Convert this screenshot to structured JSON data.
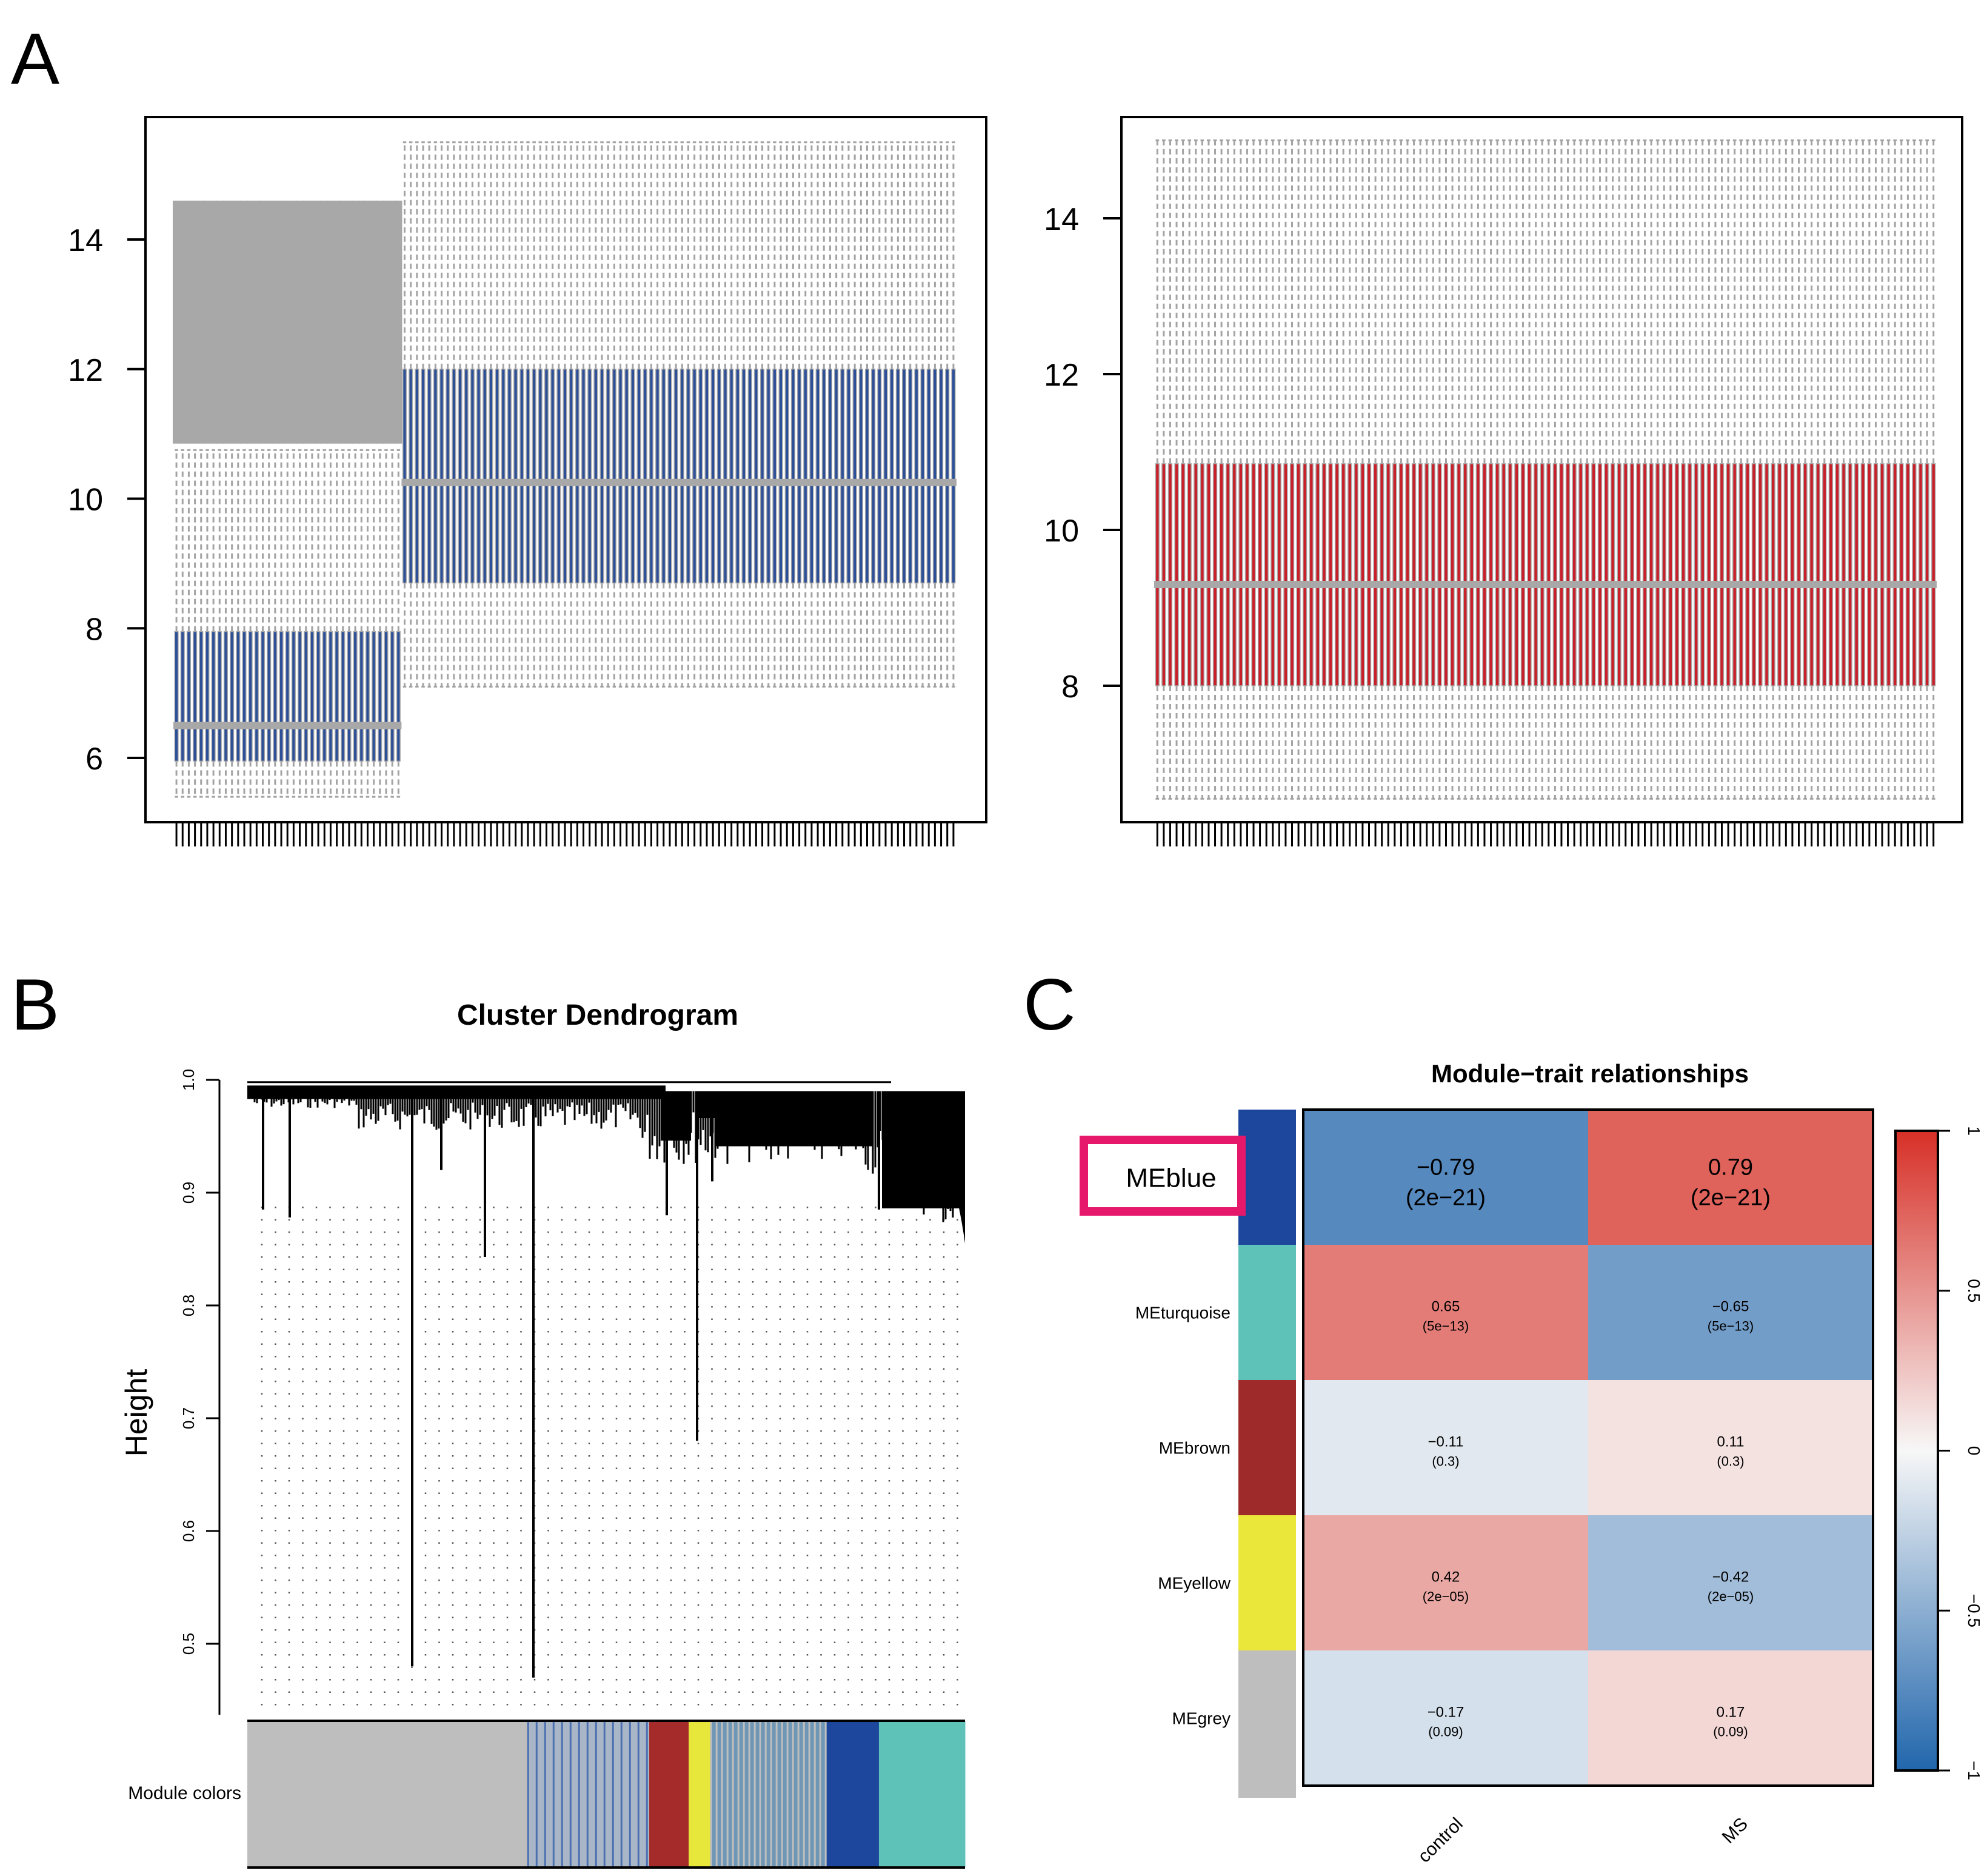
{
  "panel_labels": {
    "a": "A",
    "b": "B",
    "c": "C"
  },
  "colors": {
    "box_blue": "#2c4f97",
    "box_red": "#c8202a",
    "box_grey": "#a8a8a8",
    "whisker_grey": "#a3a3a3",
    "dendro_black": "#000000"
  },
  "chart_data": [
    {
      "id": "A-left",
      "type": "boxplot",
      "title": "",
      "xlabel": "",
      "ylabel": "",
      "ylim": [
        5.2,
        15.8
      ],
      "yticks": [
        "6",
        "8",
        "10",
        "12",
        "14"
      ],
      "groups": [
        {
          "n_samples": 37,
          "q1": 5.95,
          "median": 6.5,
          "q3": 7.95,
          "whisker_low": 5.4,
          "whisker_high": 10.75,
          "box_color": "#2c4f97",
          "outliers_above_from": 10.85,
          "outliers_above_to": 14.6
        },
        {
          "n_samples": 90,
          "q1": 8.7,
          "median": 10.25,
          "q3": 12.0,
          "whisker_low": 7.1,
          "whisker_high": 15.5,
          "box_color": "#2c4f97"
        }
      ]
    },
    {
      "id": "A-right",
      "type": "boxplot",
      "title": "",
      "xlabel": "",
      "ylabel": "",
      "ylim": [
        6.0,
        15.3
      ],
      "yticks": [
        "8",
        "10",
        "12",
        "14"
      ],
      "groups": [
        {
          "n_samples": 122,
          "q1": 8.0,
          "median": 9.3,
          "q3": 10.85,
          "whisker_low": 6.55,
          "whisker_high": 15.0,
          "box_color": "#c8202a"
        }
      ]
    },
    {
      "id": "B",
      "type": "dendrogram",
      "title": "Cluster Dendrogram",
      "xlabel": "",
      "ylabel": "Height",
      "ylim": [
        0.45,
        1.0
      ],
      "yticks": [
        "0.5",
        "0.6",
        "0.7",
        "0.8",
        "0.9",
        "1.0"
      ],
      "colorbar_label": "Module colors",
      "module_segments": [
        {
          "module": "grey",
          "from": 0.0,
          "to": 0.39,
          "color": "#bebebe"
        },
        {
          "module": "blue-mix",
          "from": 0.39,
          "to": 0.56,
          "color": "#a9b6c8"
        },
        {
          "module": "brown",
          "from": 0.56,
          "to": 0.615,
          "color": "#a52a2a"
        },
        {
          "module": "yellow",
          "from": 0.615,
          "to": 0.645,
          "color": "#e7e63a"
        },
        {
          "module": "mixed",
          "from": 0.645,
          "to": 0.805,
          "color": "#6f97b5"
        },
        {
          "module": "blue",
          "from": 0.805,
          "to": 0.88,
          "color": "#1c479c"
        },
        {
          "module": "turquoise",
          "from": 0.88,
          "to": 1.0,
          "color": "#5ec2b8"
        }
      ]
    },
    {
      "id": "C",
      "type": "heatmap",
      "title": "Module−trait relationships",
      "columns": [
        "control",
        "MS"
      ],
      "rows": [
        {
          "module": "MEblue",
          "color": "#1c479c",
          "cells": [
            {
              "value": -0.79,
              "label": "−0.79",
              "p": "(2e−21)"
            },
            {
              "value": 0.79,
              "label": "0.79",
              "p": "(2e−21)"
            }
          ]
        },
        {
          "module": "MEturquoise",
          "color": "#5ec2b8",
          "cells": [
            {
              "value": 0.65,
              "label": "0.65",
              "p": "(5e−13)"
            },
            {
              "value": -0.65,
              "label": "−0.65",
              "p": "(5e−13)"
            }
          ]
        },
        {
          "module": "MEbrown",
          "color": "#9e2a2a",
          "cells": [
            {
              "value": -0.11,
              "label": "−0.11",
              "p": "(0.3)"
            },
            {
              "value": 0.11,
              "label": "0.11",
              "p": "(0.3)"
            }
          ]
        },
        {
          "module": "MEyellow",
          "color": "#ebe63a",
          "cells": [
            {
              "value": 0.42,
              "label": "0.42",
              "p": "(2e−05)"
            },
            {
              "value": -0.42,
              "label": "−0.42",
              "p": "(2e−05)"
            }
          ]
        },
        {
          "module": "MEgrey",
          "color": "#bebebe",
          "cells": [
            {
              "value": -0.17,
              "label": "−0.17",
              "p": "(0.09)"
            },
            {
              "value": 0.17,
              "label": "0.17",
              "p": "(0.09)"
            }
          ]
        }
      ],
      "highlighted_row": "MEblue",
      "highlight_color": "#e6186b",
      "legend": {
        "min": -1,
        "max": 1,
        "ticks": [
          "−1",
          "−0.5",
          "0",
          "0.5",
          "1"
        ],
        "low_color": "#2166ac",
        "mid_color": "#f7f7f7",
        "high_color": "#d73027"
      }
    }
  ]
}
